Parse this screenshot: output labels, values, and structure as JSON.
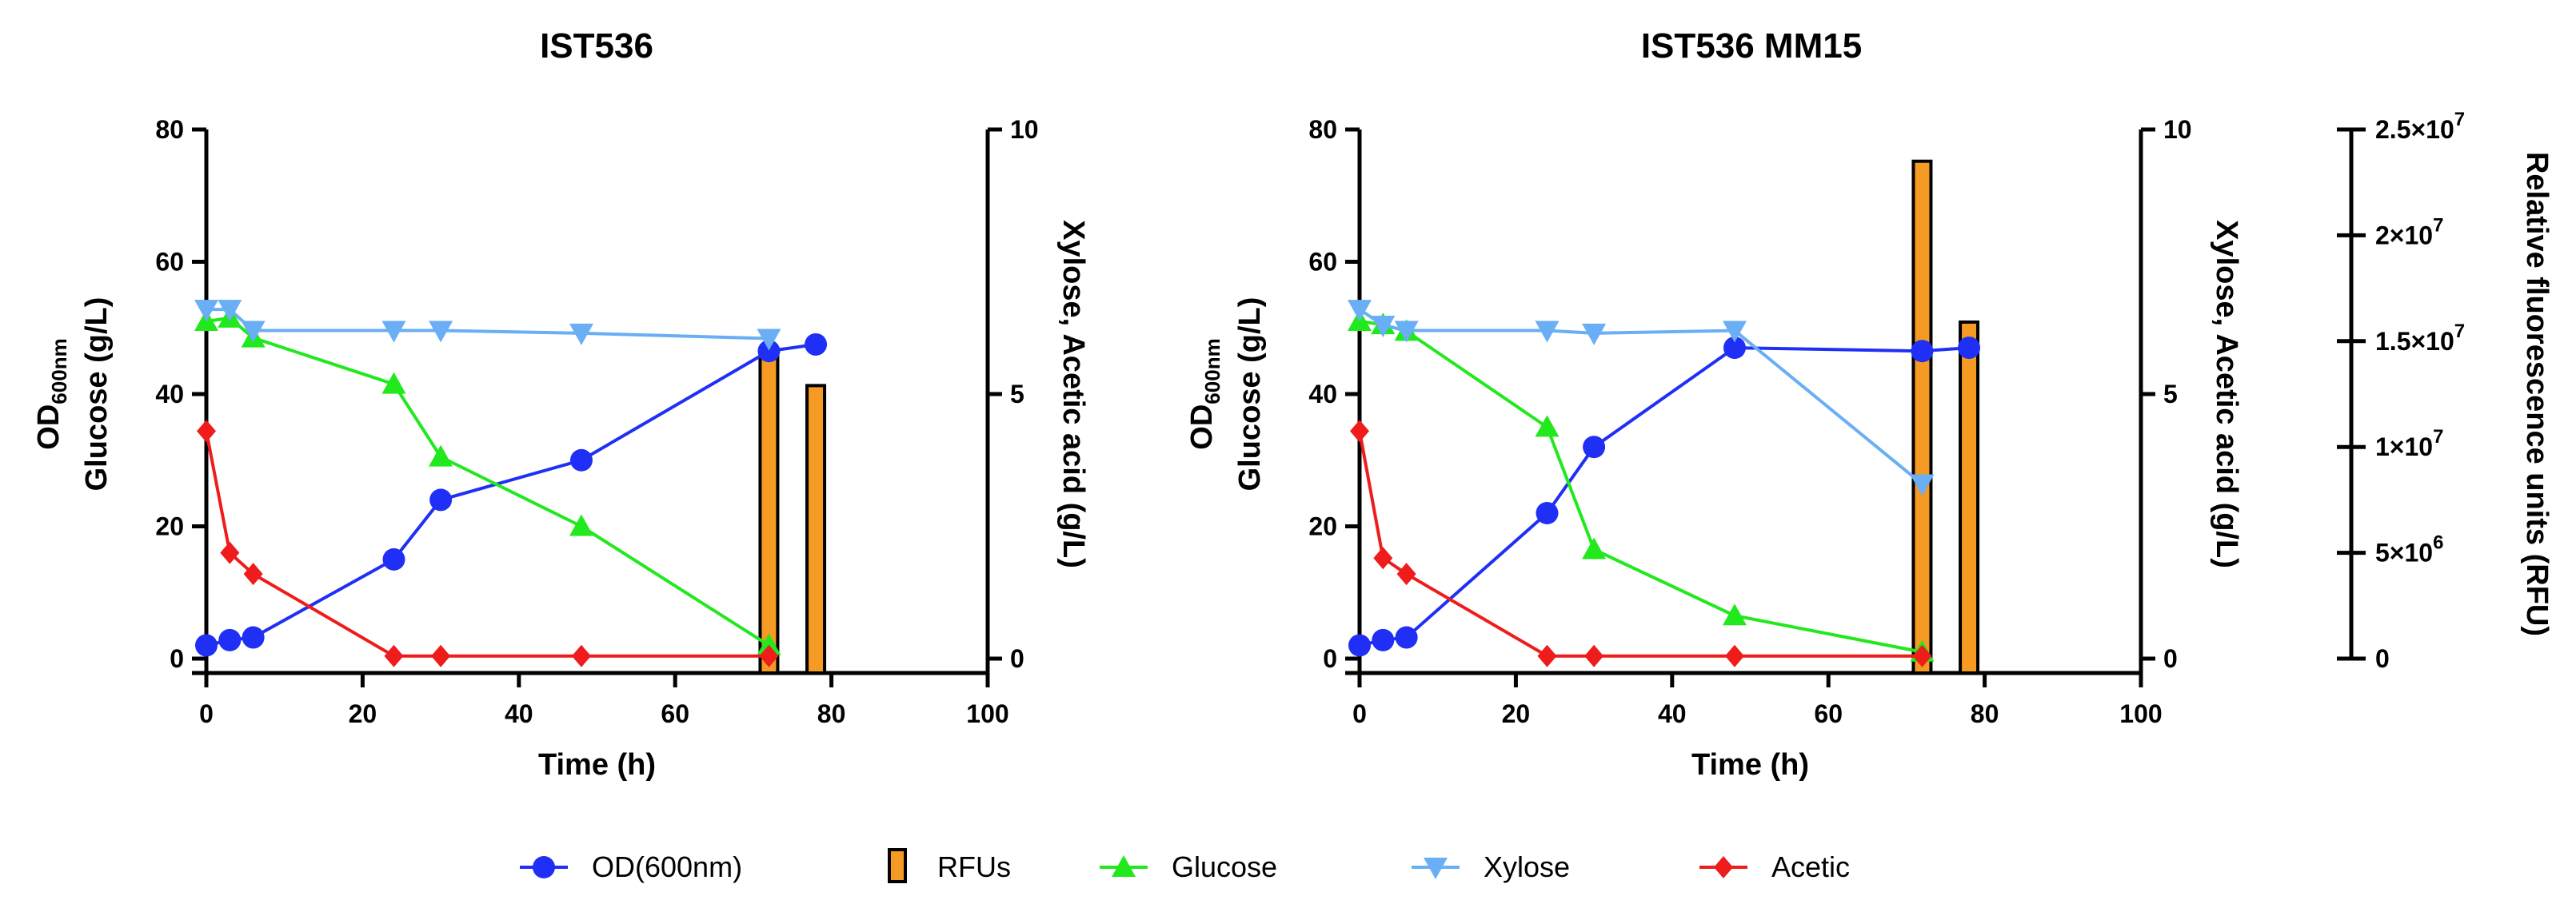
{
  "colors": {
    "od": "#1f2ff5",
    "rfu_fill": "#f59a23",
    "rfu_stroke": "#000000",
    "glucose": "#22e81e",
    "xylose": "#6aaef5",
    "acetic": "#ef1c1c"
  },
  "legend": {
    "od": "OD(600nm)",
    "rfu": "RFUs",
    "glucose": "Glucose",
    "xylose": "Xylose",
    "acetic": "Acetic"
  },
  "chart_data": [
    {
      "type": "line",
      "title": "IST536",
      "xlabel": "Time (h)",
      "ylabel_left_main": "OD",
      "ylabel_left_sub": "600nm",
      "ylabel_left_2": "Glucose (g/L)",
      "ylabel_right": "Xylose, Acetic acid (g/L)",
      "xlim": [
        0,
        100
      ],
      "xticks": [
        "0",
        "20",
        "40",
        "60",
        "80",
        "100"
      ],
      "ylim_left": [
        0,
        80
      ],
      "yticks_left": [
        "0",
        "20",
        "40",
        "60",
        "80"
      ],
      "ylim_right": [
        0,
        10
      ],
      "yticks_right": [
        "0",
        "5",
        "10"
      ],
      "series": [
        {
          "key": "od",
          "name": "OD(600nm)",
          "axis": "left",
          "marker": "circle",
          "x": [
            0,
            3,
            6,
            24,
            30,
            48,
            72,
            78
          ],
          "y": [
            2,
            2.8,
            3.2,
            15,
            24,
            30,
            46.5,
            47.5
          ]
        },
        {
          "key": "glucose",
          "name": "Glucose",
          "axis": "left",
          "marker": "triangle-up",
          "x": [
            0,
            3,
            6,
            24,
            30,
            48,
            72
          ],
          "y": [
            51,
            51.5,
            48.5,
            41.5,
            30.5,
            20,
            2
          ]
        },
        {
          "key": "xylose",
          "name": "Xylose",
          "axis": "right",
          "marker": "triangle-down",
          "x": [
            0,
            3,
            6,
            24,
            30,
            48,
            72
          ],
          "y": [
            6.6,
            6.6,
            6.2,
            6.2,
            6.2,
            6.15,
            6.05
          ]
        },
        {
          "key": "acetic",
          "name": "Acetic",
          "axis": "right",
          "marker": "diamond",
          "x": [
            0,
            3,
            6,
            24,
            30,
            48,
            72
          ],
          "y": [
            4.3,
            2.0,
            1.6,
            0.05,
            0.05,
            0.05,
            0.05
          ]
        }
      ],
      "bars": {
        "key": "rfu",
        "name": "RFUs",
        "axis": "rfu",
        "ylim": [
          0,
          25000000
        ],
        "x": [
          72,
          78
        ],
        "y": [
          14300000,
          12900000
        ]
      }
    },
    {
      "type": "line",
      "title": "IST536 MM15",
      "xlabel": "Time (h)",
      "ylabel_left_main": "OD",
      "ylabel_left_sub": "600nm",
      "ylabel_left_2": "Glucose (g/L)",
      "ylabel_right": "Xylose, Acetic acid (g/L)",
      "ylabel_far_right": "Relative fluorescence units (RFU)",
      "xlim": [
        0,
        100
      ],
      "xticks": [
        "0",
        "20",
        "40",
        "60",
        "80",
        "100"
      ],
      "ylim_left": [
        0,
        80
      ],
      "yticks_left": [
        "0",
        "20",
        "40",
        "60",
        "80"
      ],
      "ylim_right": [
        0,
        10
      ],
      "yticks_right": [
        "0",
        "5",
        "10"
      ],
      "ylim_far_right": [
        0,
        25000000
      ],
      "yticks_far_right": [
        {
          "base": "0",
          "exp": ""
        },
        {
          "base": "5×10",
          "exp": "6"
        },
        {
          "base": "1×10",
          "exp": "7"
        },
        {
          "base": "1.5×10",
          "exp": "7"
        },
        {
          "base": "2×10",
          "exp": "7"
        },
        {
          "base": "2.5×10",
          "exp": "7"
        }
      ],
      "series": [
        {
          "key": "od",
          "name": "OD(600nm)",
          "axis": "left",
          "marker": "circle",
          "x": [
            0,
            3,
            6,
            24,
            30,
            48,
            72,
            78
          ],
          "y": [
            2,
            2.8,
            3.2,
            22,
            32,
            47,
            46.5,
            47
          ]
        },
        {
          "key": "glucose",
          "name": "Glucose",
          "axis": "left",
          "marker": "triangle-up",
          "x": [
            0,
            3,
            6,
            24,
            30,
            48,
            72
          ],
          "y": [
            51,
            50.5,
            49.5,
            35,
            16.5,
            6.5,
            1
          ]
        },
        {
          "key": "xylose",
          "name": "Xylose",
          "axis": "right",
          "marker": "triangle-down",
          "x": [
            0,
            3,
            6,
            24,
            30,
            48,
            72
          ],
          "y": [
            6.6,
            6.3,
            6.2,
            6.2,
            6.15,
            6.2,
            3.3
          ]
        },
        {
          "key": "acetic",
          "name": "Acetic",
          "axis": "right",
          "marker": "diamond",
          "x": [
            0,
            3,
            6,
            24,
            30,
            48,
            72
          ],
          "y": [
            4.3,
            1.9,
            1.6,
            0.05,
            0.05,
            0.05,
            0.05
          ]
        }
      ],
      "bars": {
        "key": "rfu",
        "name": "RFUs",
        "axis": "rfu",
        "ylim": [
          0,
          25000000
        ],
        "x": [
          72,
          78
        ],
        "y": [
          23500000,
          15900000
        ]
      }
    }
  ]
}
